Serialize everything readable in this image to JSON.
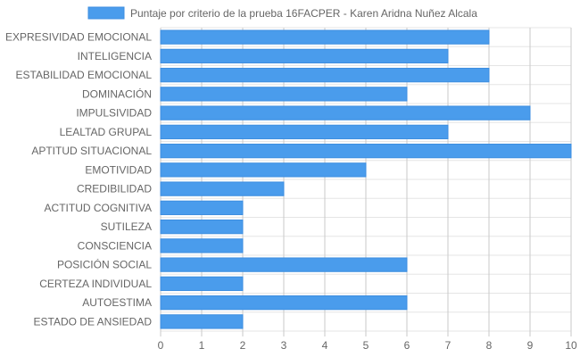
{
  "colors": {
    "bar_fill": "#4a9cec",
    "bar_border": "#3d8ee0",
    "grid": "#e5e5e5",
    "axis": "#c8c8c8",
    "text": "#666666"
  },
  "chart_data": {
    "type": "bar",
    "orientation": "horizontal",
    "categories": [
      "EXPRESIVIDAD EMOCIONAL",
      "INTELIGENCIA",
      "ESTABILIDAD EMOCIONAL",
      "DOMINACIÓN",
      "IMPULSIVIDAD",
      "LEALTAD GRUPAL",
      "APTITUD SITUACIONAL",
      "EMOTIVIDAD",
      "CREDIBILIDAD",
      "ACTITUD COGNITIVA",
      "SUTILEZA",
      "CONSCIENCIA",
      "POSICIÓN SOCIAL",
      "CERTEZA INDIVIDUAL",
      "AUTOESTIMA",
      "ESTADO DE ANSIEDAD"
    ],
    "series": [
      {
        "name": "Puntaje por criterio de la prueba 16FACPER - Karen Aridna Nuñez Alcala",
        "values": [
          8,
          7,
          8,
          6,
          9,
          7,
          10,
          5,
          3,
          2,
          2,
          2,
          6,
          2,
          6,
          2
        ]
      }
    ],
    "xlim": [
      0,
      10
    ],
    "xticks": [
      "0",
      "1",
      "2",
      "3",
      "4",
      "5",
      "6",
      "7",
      "8",
      "9",
      "10"
    ],
    "grid": true,
    "legend_position": "top"
  }
}
